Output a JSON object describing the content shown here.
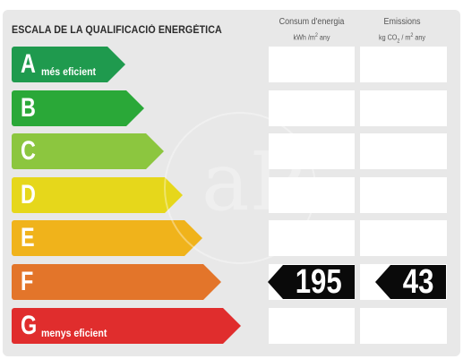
{
  "header": {
    "title": "ESCALA DE LA QUALIFICACIÓ ENERGÈTICA",
    "consum_label": "Consum d'energia",
    "consum_unit": "kWh /m",
    "consum_unit_sup": "2",
    "consum_unit_tail": " any",
    "emis_label": "Emissions",
    "emis_unit": "kg CO",
    "emis_unit_sub": "2",
    "emis_unit_mid": " / m",
    "emis_unit_sup": "2",
    "emis_unit_tail": " any"
  },
  "ratings": [
    {
      "letter": "A",
      "label": "més eficient",
      "color": "#1f9a4e"
    },
    {
      "letter": "B",
      "label": "",
      "color": "#2aa838"
    },
    {
      "letter": "C",
      "label": "",
      "color": "#8cc63f"
    },
    {
      "letter": "D",
      "label": "",
      "color": "#e6d71b"
    },
    {
      "letter": "E",
      "label": "",
      "color": "#f0b31b"
    },
    {
      "letter": "F",
      "label": "",
      "color": "#e3752a"
    },
    {
      "letter": "G",
      "label": "menys eficient",
      "color": "#e02d2d"
    }
  ],
  "result": {
    "rating": "F",
    "consum_value": "195",
    "emis_value": "43"
  },
  "watermark": {
    "icon": "agency-logo-watermark",
    "text": "aP"
  }
}
